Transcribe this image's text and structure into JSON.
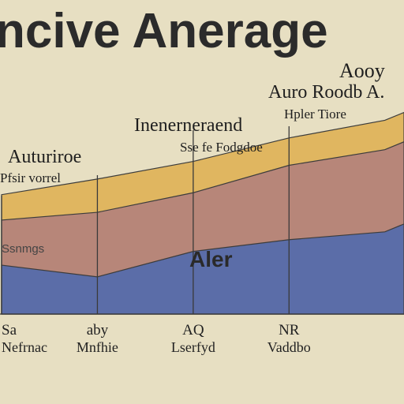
{
  "chart_data": {
    "type": "area",
    "title": "ncive Anerage",
    "x": [
      0,
      1,
      2,
      3,
      4
    ],
    "xlim": [
      0,
      4.2
    ],
    "ylim": [
      0,
      100
    ],
    "series": [
      {
        "values": [
          25,
          19,
          32,
          38,
          42
        ],
        "color": "#5b6da8"
      },
      {
        "values": [
          48,
          52,
          62,
          76,
          84
        ],
        "color": "#b78679"
      },
      {
        "values": [
          61,
          69,
          78,
          90,
          99
        ],
        "color": "#e0b660"
      }
    ],
    "ticks": [
      {
        "x": 0,
        "label": "Sa",
        "sub": "Nefrnac"
      },
      {
        "x": 1,
        "label": "aby",
        "sub": "Mnfhie"
      },
      {
        "x": 2,
        "label": "AQ",
        "sub": "Lserfyd"
      },
      {
        "x": 3,
        "label": "NR",
        "sub": "Vaddbo"
      }
    ],
    "annotations": [
      {
        "x": 0,
        "head": "Auturiroe",
        "sub": "Pfsir vorrel"
      },
      {
        "x": 2,
        "head": "Inenerneraend",
        "sub": "Sse fe Fodgdoe"
      },
      {
        "x": 3,
        "head": "Auro Roodb A.",
        "sub": "Hpler Tiore"
      }
    ],
    "top_right_label": "Aooy",
    "band_label": "Ssnmgs",
    "area_label": "Aler",
    "grid": false,
    "legend": "none"
  }
}
